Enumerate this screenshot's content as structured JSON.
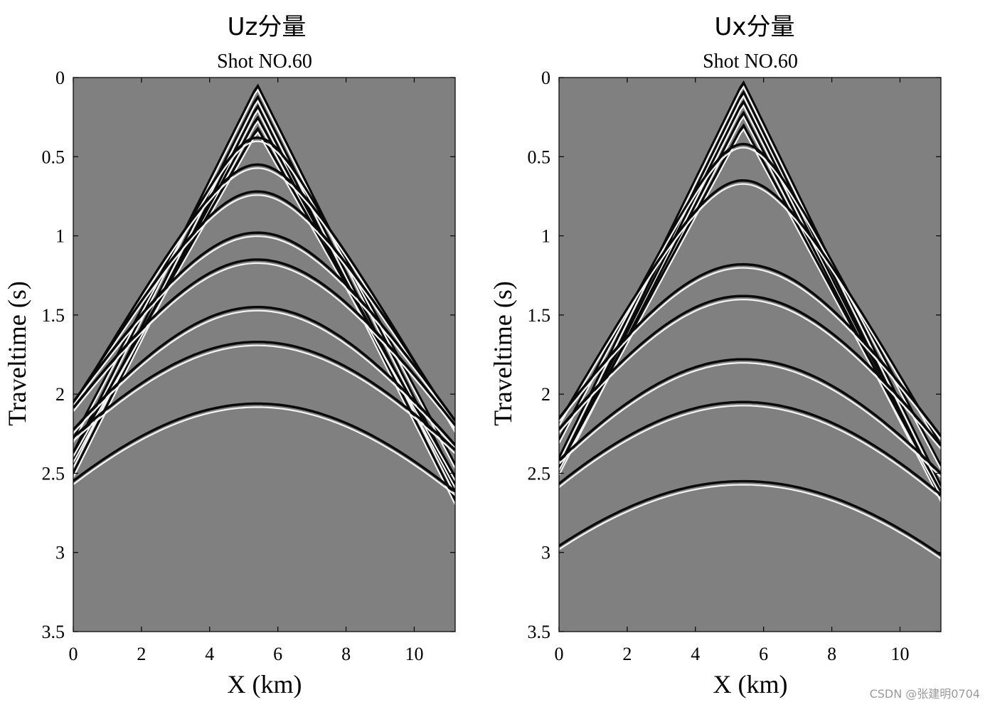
{
  "chart_data": [
    {
      "type": "heatmap",
      "suptitle": "Uz分量",
      "title": "Shot NO.60",
      "xlabel": "X (km)",
      "ylabel": "Traveltime (s)",
      "xlim": [
        0,
        11.2
      ],
      "ylim": [
        0,
        3.5
      ],
      "y_reversed": true,
      "xticks": [
        0,
        2,
        4,
        6,
        8,
        10
      ],
      "yticks": [
        0,
        0.5,
        1,
        1.5,
        2,
        2.5,
        3,
        3.5
      ],
      "colormap": "gray",
      "background": "#808080",
      "source_x": 5.4,
      "events": [
        {
          "kind": "direct",
          "t0": 0.05,
          "slope": 0.43
        },
        {
          "kind": "direct",
          "t0": 0.12,
          "slope": 0.43
        },
        {
          "kind": "direct",
          "t0": 0.18,
          "slope": 0.43
        },
        {
          "kind": "direct",
          "t0": 0.25,
          "slope": 0.4
        },
        {
          "kind": "direct",
          "t0": 0.32,
          "slope": 0.38
        },
        {
          "kind": "reflection",
          "t0": 0.38,
          "v": 2.4
        },
        {
          "kind": "reflection",
          "t0": 0.55,
          "v": 2.7
        },
        {
          "kind": "reflection",
          "t0": 0.72,
          "v": 2.8
        },
        {
          "kind": "reflection",
          "t0": 0.98,
          "v": 3.0
        },
        {
          "kind": "reflection",
          "t0": 1.15,
          "v": 3.1
        },
        {
          "kind": "reflection",
          "t0": 1.45,
          "v": 3.2
        },
        {
          "kind": "reflection",
          "t0": 1.67,
          "v": 3.5
        },
        {
          "kind": "reflection",
          "t0": 2.06,
          "v": 3.6
        }
      ]
    },
    {
      "type": "heatmap",
      "suptitle": "Ux分量",
      "title": "Shot NO.60",
      "xlabel": "X (km)",
      "ylabel": "Traveltime (s)",
      "xlim": [
        0,
        11.2
      ],
      "ylim": [
        0,
        3.5
      ],
      "y_reversed": true,
      "xticks": [
        0,
        2,
        4,
        6,
        8,
        10
      ],
      "yticks": [
        0,
        0.5,
        1,
        1.5,
        2,
        2.5,
        3,
        3.5
      ],
      "colormap": "gray",
      "background": "#808080",
      "source_x": 5.4,
      "events": [
        {
          "kind": "direct",
          "t0": 0.03,
          "slope": 0.44
        },
        {
          "kind": "direct",
          "t0": 0.09,
          "slope": 0.44
        },
        {
          "kind": "direct",
          "t0": 0.15,
          "slope": 0.43
        },
        {
          "kind": "direct",
          "t0": 0.22,
          "slope": 0.42
        },
        {
          "kind": "direct",
          "t0": 0.3,
          "slope": 0.4
        },
        {
          "kind": "reflection",
          "t0": 0.42,
          "v": 2.4
        },
        {
          "kind": "reflection",
          "t0": 0.65,
          "v": 2.6
        },
        {
          "kind": "reflection",
          "t0": 1.18,
          "v": 3.0
        },
        {
          "kind": "reflection",
          "t0": 1.38,
          "v": 3.1
        },
        {
          "kind": "reflection",
          "t0": 1.78,
          "v": 3.3
        },
        {
          "kind": "reflection",
          "t0": 2.05,
          "v": 3.5
        },
        {
          "kind": "reflection",
          "t0": 2.55,
          "v": 3.6
        }
      ]
    }
  ],
  "watermark": "CSDN @张建明0704"
}
